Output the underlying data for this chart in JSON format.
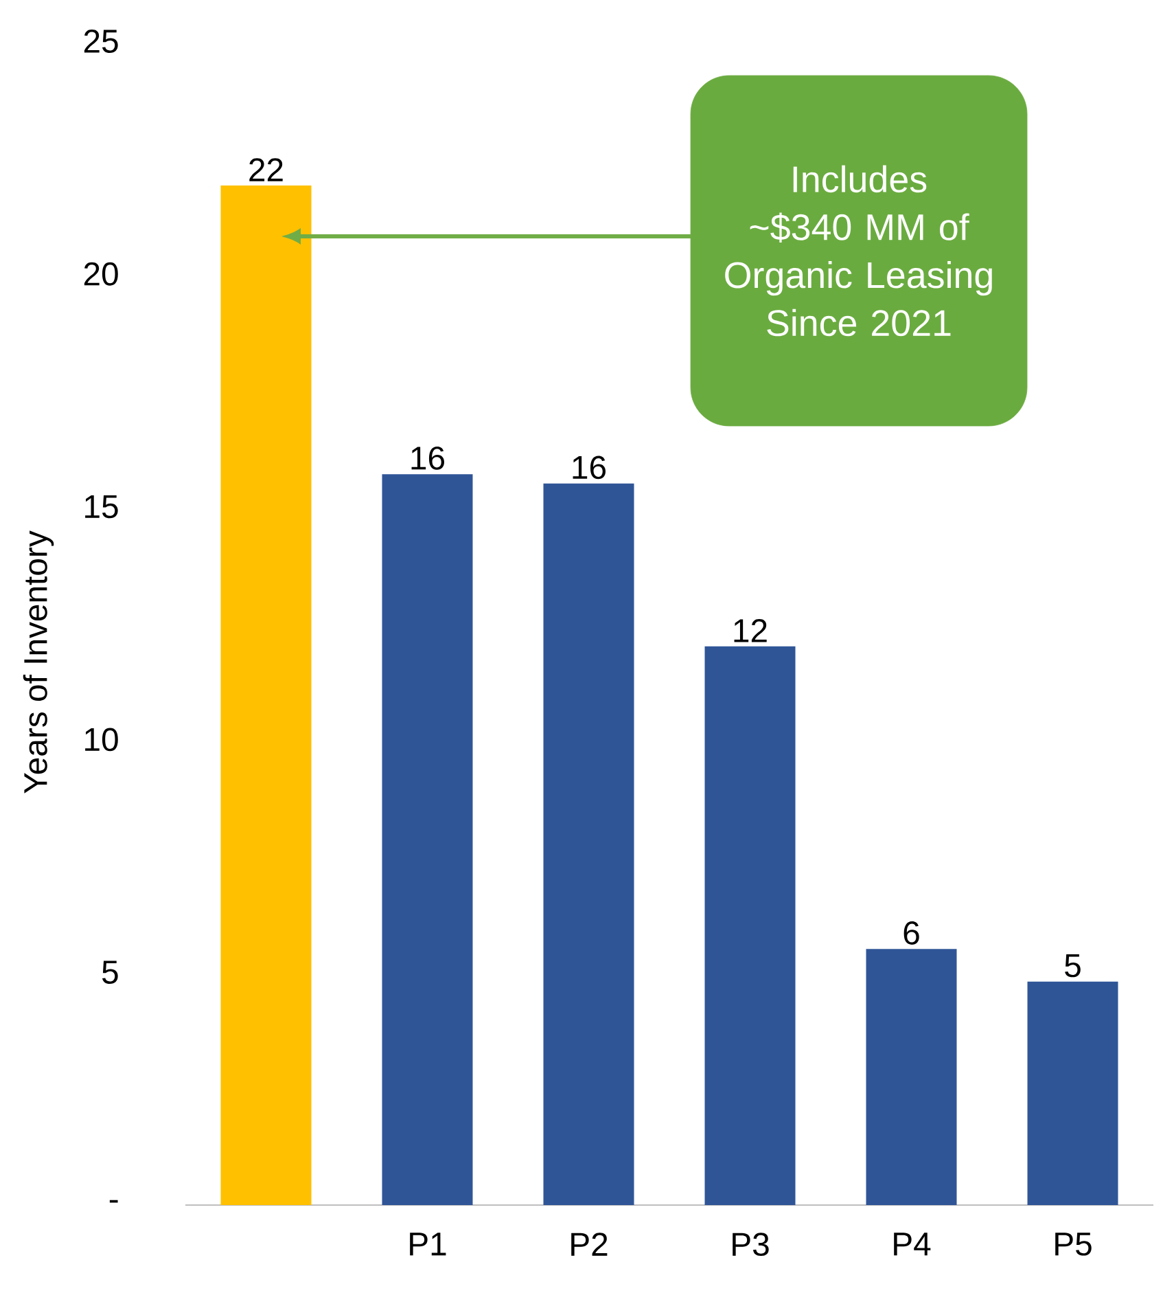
{
  "chart_data": {
    "type": "bar",
    "categories": [
      null,
      "P1",
      "P2",
      "P3",
      "P4",
      "P5"
    ],
    "values": [
      21.9,
      15.7,
      15.5,
      12.0,
      5.5,
      4.8
    ],
    "colors": [
      "#ffc000",
      "#2f5597",
      "#2f5597",
      "#2f5597",
      "#2f5597",
      "#2f5597"
    ],
    "value_labels": [
      "22",
      "16",
      "16",
      "12",
      "6",
      "5"
    ],
    "ylabel": "Years of Inventory",
    "ylim": [
      0,
      25
    ],
    "yticks": [
      {
        "value": 0,
        "label": "-"
      },
      5,
      10,
      15,
      20,
      25
    ],
    "annotations": [
      "Includes ~$340 MM of Organic Leasing Since 2021"
    ]
  }
}
